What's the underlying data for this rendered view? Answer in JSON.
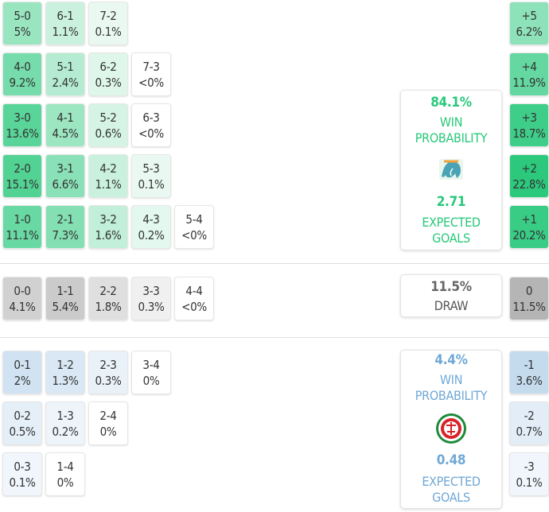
{
  "chart_data": {
    "type": "heatmap",
    "title": "",
    "home": {
      "win_probability": "84.1%",
      "win_label": "WIN PROBABILITY",
      "expected_goals": "2.71",
      "expected_goals_label": "EXPECTED GOALS",
      "color": "#27c87a",
      "badge_icon": "elephant-crest-icon",
      "scorelines": [
        {
          "score": "5-0",
          "prob": "5%",
          "value": 5.0,
          "row": 0,
          "col": 0
        },
        {
          "score": "6-1",
          "prob": "1.1%",
          "value": 1.1,
          "row": 0,
          "col": 1
        },
        {
          "score": "7-2",
          "prob": "0.1%",
          "value": 0.1,
          "row": 0,
          "col": 2
        },
        {
          "score": "4-0",
          "prob": "9.2%",
          "value": 9.2,
          "row": 1,
          "col": 0
        },
        {
          "score": "5-1",
          "prob": "2.4%",
          "value": 2.4,
          "row": 1,
          "col": 1
        },
        {
          "score": "6-2",
          "prob": "0.3%",
          "value": 0.3,
          "row": 1,
          "col": 2
        },
        {
          "score": "7-3",
          "prob": "<0%",
          "value": 0,
          "row": 1,
          "col": 3
        },
        {
          "score": "3-0",
          "prob": "13.6%",
          "value": 13.6,
          "row": 2,
          "col": 0
        },
        {
          "score": "4-1",
          "prob": "4.5%",
          "value": 4.5,
          "row": 2,
          "col": 1
        },
        {
          "score": "5-2",
          "prob": "0.6%",
          "value": 0.6,
          "row": 2,
          "col": 2
        },
        {
          "score": "6-3",
          "prob": "<0%",
          "value": 0,
          "row": 2,
          "col": 3
        },
        {
          "score": "2-0",
          "prob": "15.1%",
          "value": 15.1,
          "row": 3,
          "col": 0
        },
        {
          "score": "3-1",
          "prob": "6.6%",
          "value": 6.6,
          "row": 3,
          "col": 1
        },
        {
          "score": "4-2",
          "prob": "1.1%",
          "value": 1.1,
          "row": 3,
          "col": 2
        },
        {
          "score": "5-3",
          "prob": "0.1%",
          "value": 0.1,
          "row": 3,
          "col": 3
        },
        {
          "score": "1-0",
          "prob": "11.1%",
          "value": 11.1,
          "row": 4,
          "col": 0
        },
        {
          "score": "2-1",
          "prob": "7.3%",
          "value": 7.3,
          "row": 4,
          "col": 1
        },
        {
          "score": "3-2",
          "prob": "1.6%",
          "value": 1.6,
          "row": 4,
          "col": 2
        },
        {
          "score": "4-3",
          "prob": "0.2%",
          "value": 0.2,
          "row": 4,
          "col": 3
        },
        {
          "score": "5-4",
          "prob": "<0%",
          "value": 0,
          "row": 4,
          "col": 4
        }
      ],
      "margins": [
        {
          "label": "+5",
          "prob": "6.2%",
          "value": 6.2,
          "row": 0
        },
        {
          "label": "+4",
          "prob": "11.9%",
          "value": 11.9,
          "row": 1
        },
        {
          "label": "+3",
          "prob": "18.7%",
          "value": 18.7,
          "row": 2
        },
        {
          "label": "+2",
          "prob": "22.8%",
          "value": 22.8,
          "row": 3
        },
        {
          "label": "+1",
          "prob": "20.2%",
          "value": 20.2,
          "row": 4
        }
      ]
    },
    "draw": {
      "probability": "11.5%",
      "label": "DRAW",
      "color": "#9b9b9b",
      "scorelines": [
        {
          "score": "0-0",
          "prob": "4.1%",
          "value": 4.1,
          "row": 0,
          "col": 0
        },
        {
          "score": "1-1",
          "prob": "5.4%",
          "value": 5.4,
          "row": 0,
          "col": 1
        },
        {
          "score": "2-2",
          "prob": "1.8%",
          "value": 1.8,
          "row": 0,
          "col": 2
        },
        {
          "score": "3-3",
          "prob": "0.3%",
          "value": 0.3,
          "row": 0,
          "col": 3
        },
        {
          "score": "4-4",
          "prob": "<0%",
          "value": 0,
          "row": 0,
          "col": 4
        }
      ],
      "margins": [
        {
          "label": "0",
          "prob": "11.5%",
          "value": 11.5,
          "row": 0
        }
      ]
    },
    "away": {
      "win_probability": "4.4%",
      "win_label": "WIN PROBABILITY",
      "expected_goals": "0.48",
      "expected_goals_label": "EXPECTED GOALS",
      "color": "#6fa8d6",
      "badge_icon": "red-ring-crest-icon",
      "scorelines": [
        {
          "score": "0-1",
          "prob": "2%",
          "value": 2.0,
          "row": 0,
          "col": 0
        },
        {
          "score": "1-2",
          "prob": "1.3%",
          "value": 1.3,
          "row": 0,
          "col": 1
        },
        {
          "score": "2-3",
          "prob": "0.3%",
          "value": 0.3,
          "row": 0,
          "col": 2
        },
        {
          "score": "3-4",
          "prob": "0%",
          "value": 0,
          "row": 0,
          "col": 3
        },
        {
          "score": "0-2",
          "prob": "0.5%",
          "value": 0.5,
          "row": 1,
          "col": 0
        },
        {
          "score": "1-3",
          "prob": "0.2%",
          "value": 0.2,
          "row": 1,
          "col": 1
        },
        {
          "score": "2-4",
          "prob": "0%",
          "value": 0,
          "row": 1,
          "col": 2
        },
        {
          "score": "0-3",
          "prob": "0.1%",
          "value": 0.1,
          "row": 2,
          "col": 0
        },
        {
          "score": "1-4",
          "prob": "0%",
          "value": 0,
          "row": 2,
          "col": 1
        }
      ],
      "margins": [
        {
          "label": "-1",
          "prob": "3.6%",
          "value": 3.6,
          "row": 0
        },
        {
          "label": "-2",
          "prob": "0.7%",
          "value": 0.7,
          "row": 1
        },
        {
          "label": "-3",
          "prob": "0.1%",
          "value": 0.1,
          "row": 2
        }
      ]
    }
  }
}
